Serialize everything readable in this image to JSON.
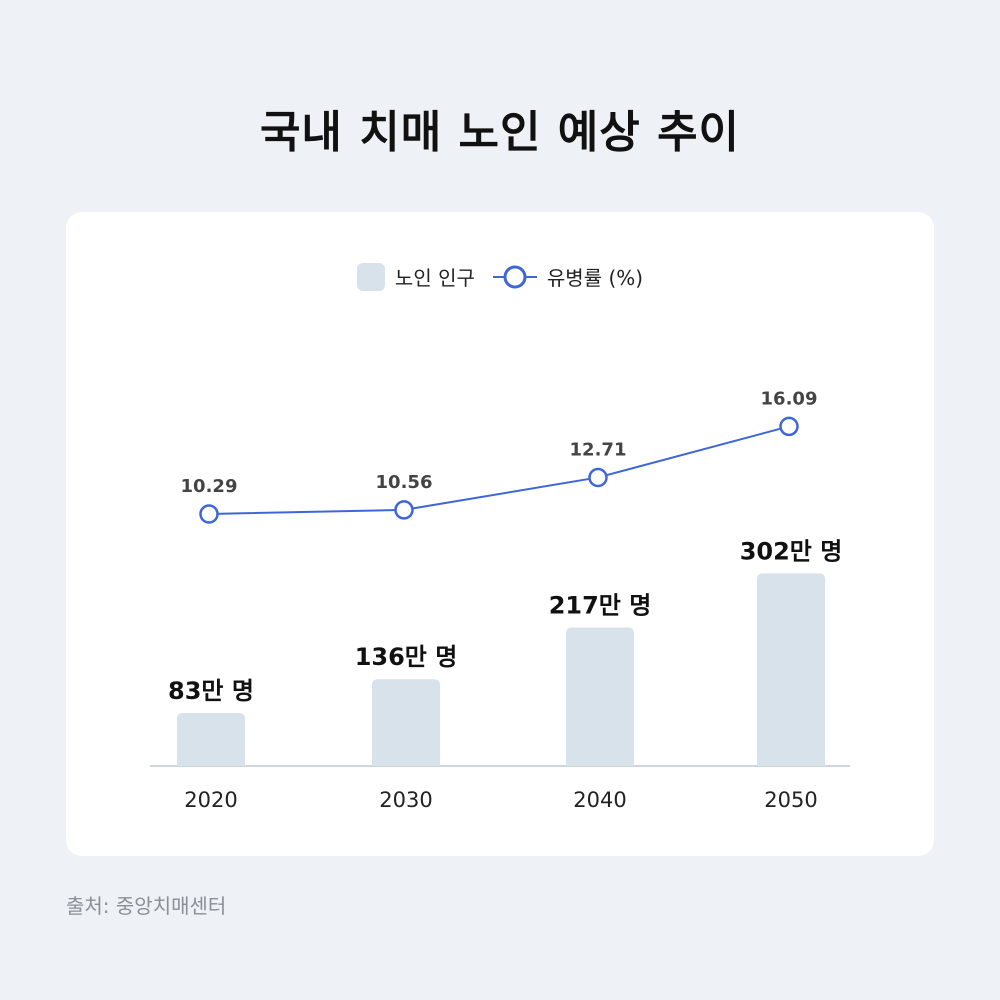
{
  "title": "국내 치매 노인 예상 추이",
  "source": "출처: 중앙치매센터",
  "legend": {
    "bar_label": "노인 인구",
    "line_label": "유병률 (%)"
  },
  "colors": {
    "bar": "#d8e2ea",
    "line": "#3f66d8",
    "background": "#eef2f7"
  },
  "chart_data": {
    "type": "bar+line",
    "categories": [
      "2020",
      "2030",
      "2040",
      "2050"
    ],
    "series": [
      {
        "name": "노인 인구",
        "type": "bar",
        "values": [
          83,
          136,
          217,
          302
        ],
        "labels": [
          "83만 명",
          "136만 명",
          "217만 명",
          "302만 명"
        ]
      },
      {
        "name": "유병률 (%)",
        "type": "line",
        "values": [
          10.29,
          10.56,
          12.71,
          16.09
        ],
        "labels": [
          "10.29",
          "10.56",
          "12.71",
          "16.09"
        ]
      }
    ],
    "legend_position": "top-center",
    "grid": false
  }
}
